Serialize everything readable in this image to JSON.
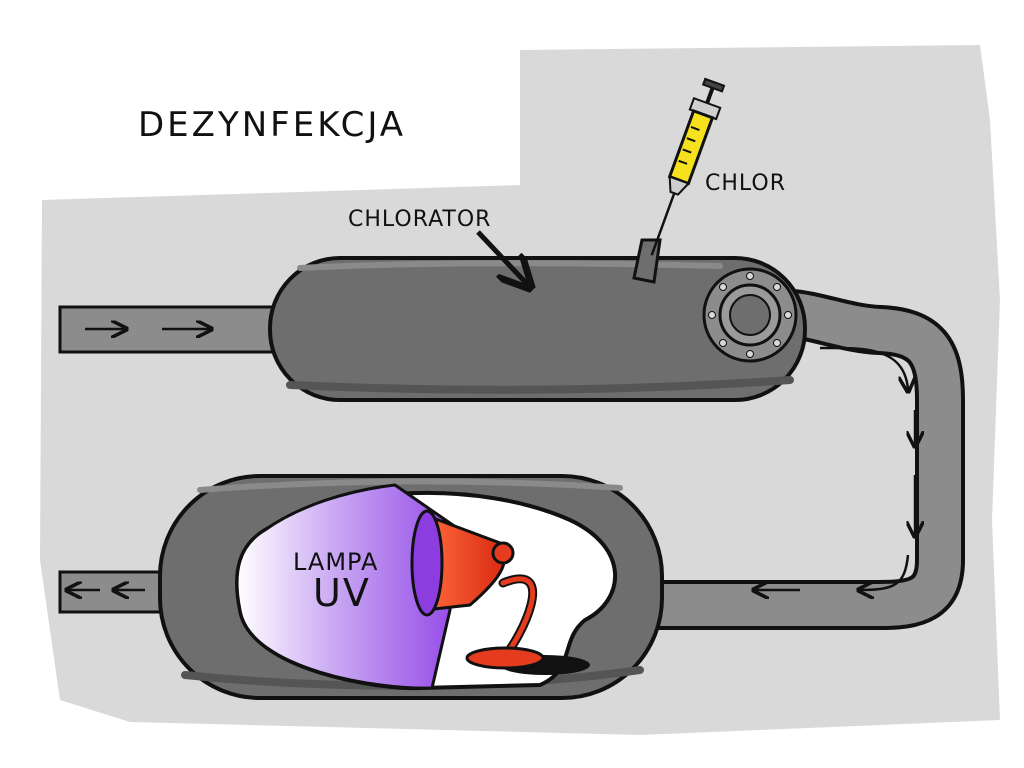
{
  "title": "DEZYNFEKCJA",
  "labels": {
    "chlorator": "CHLORATOR",
    "chlor": "CHLOR",
    "lamp_line1": "LAMPA",
    "lamp_line2": "UV"
  },
  "colors": {
    "background_blob": "#d9d9d9",
    "tank": "#6e6e6e",
    "tank_shadow": "#555555",
    "pipe": "#8c8c8c",
    "pipe_highlight": "#a8a8a8",
    "outline": "#111111",
    "uv_light": "#9b5de5",
    "lamp_red": "#e53b1e",
    "syringe_fluid": "#f5e11e"
  },
  "icons": [
    "syringe-icon",
    "uv-lamp-icon",
    "flange-icon",
    "flow-arrow-icon"
  ]
}
